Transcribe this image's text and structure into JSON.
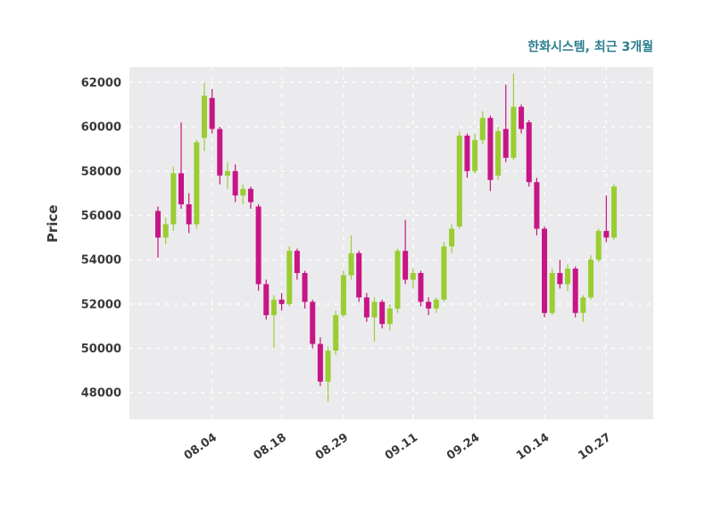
{
  "chart_data": {
    "type": "candlestick",
    "title": "한화시스템, 최근 3개월",
    "ylabel": "Price",
    "title_color": "#2C7F8E",
    "tick_color": "#3a3a3a",
    "up_color": "#9ACD32",
    "down_color": "#C71585",
    "plot_bg": "#EBEBEE",
    "grid_color": "#FFFFFF",
    "grid_style": "dashed",
    "legend": "none",
    "ylim": [
      46800,
      62700
    ],
    "yticks": [
      48000,
      50000,
      52000,
      54000,
      56000,
      58000,
      60000,
      62000
    ],
    "xticks": [
      {
        "i": 7,
        "label": "08.04"
      },
      {
        "i": 16,
        "label": "08.18"
      },
      {
        "i": 24,
        "label": "08.29"
      },
      {
        "i": 33,
        "label": "09.11"
      },
      {
        "i": 41,
        "label": "09.24"
      },
      {
        "i": 50,
        "label": "10.14"
      },
      {
        "i": 58,
        "label": "10.27"
      }
    ],
    "candle_format": [
      "open",
      "high",
      "low",
      "close"
    ],
    "candles": [
      [
        56200,
        56400,
        54100,
        55000
      ],
      [
        55000,
        55900,
        54700,
        55600
      ],
      [
        55600,
        58200,
        55300,
        57900
      ],
      [
        57900,
        60200,
        56300,
        56500
      ],
      [
        56500,
        57000,
        55200,
        55600
      ],
      [
        55600,
        59400,
        55400,
        59300
      ],
      [
        59500,
        62000,
        58900,
        61400
      ],
      [
        61300,
        61700,
        59700,
        59900
      ],
      [
        59900,
        60000,
        57400,
        57800
      ],
      [
        57800,
        58400,
        57200,
        58000
      ],
      [
        58000,
        58300,
        56600,
        56900
      ],
      [
        56900,
        57400,
        56500,
        57200
      ],
      [
        57200,
        57300,
        56300,
        56600
      ],
      [
        56400,
        56500,
        52600,
        52900
      ],
      [
        52900,
        53100,
        51300,
        51500
      ],
      [
        51500,
        52400,
        50000,
        52200
      ],
      [
        52200,
        52500,
        51700,
        52000
      ],
      [
        52000,
        54600,
        51900,
        54400
      ],
      [
        54400,
        54500,
        53100,
        53400
      ],
      [
        53400,
        53500,
        51800,
        52100
      ],
      [
        52100,
        52200,
        50000,
        50200
      ],
      [
        50200,
        50500,
        48300,
        48500
      ],
      [
        48500,
        50100,
        47600,
        49900
      ],
      [
        49900,
        51700,
        49700,
        51500
      ],
      [
        51500,
        53500,
        51400,
        53300
      ],
      [
        53300,
        55100,
        53100,
        54300
      ],
      [
        54300,
        54400,
        52100,
        52300
      ],
      [
        52300,
        52500,
        51200,
        51400
      ],
      [
        51400,
        52300,
        50300,
        52100
      ],
      [
        52100,
        52200,
        50900,
        51100
      ],
      [
        51100,
        52000,
        50800,
        51800
      ],
      [
        51800,
        54500,
        51600,
        54400
      ],
      [
        54400,
        55800,
        52900,
        53100
      ],
      [
        53100,
        53600,
        52700,
        53400
      ],
      [
        53400,
        53500,
        51900,
        52100
      ],
      [
        52100,
        52300,
        51500,
        51800
      ],
      [
        51800,
        52300,
        51600,
        52200
      ],
      [
        52200,
        54800,
        52100,
        54600
      ],
      [
        54600,
        55600,
        54300,
        55400
      ],
      [
        55500,
        59800,
        55400,
        59600
      ],
      [
        59600,
        59700,
        57700,
        58000
      ],
      [
        58000,
        59700,
        57900,
        59400
      ],
      [
        59400,
        60700,
        59200,
        60400
      ],
      [
        60400,
        60500,
        57100,
        57600
      ],
      [
        57800,
        60000,
        57600,
        59800
      ],
      [
        59900,
        61900,
        58400,
        58600
      ],
      [
        58600,
        62400,
        58500,
        60900
      ],
      [
        60900,
        61000,
        59700,
        59900
      ],
      [
        60200,
        60300,
        57300,
        57500
      ],
      [
        57500,
        57700,
        55100,
        55400
      ],
      [
        55400,
        55500,
        51400,
        51600
      ],
      [
        51600,
        53600,
        51500,
        53400
      ],
      [
        53400,
        54000,
        52700,
        52900
      ],
      [
        52900,
        53800,
        52600,
        53600
      ],
      [
        53600,
        53700,
        51400,
        51600
      ],
      [
        51600,
        52400,
        51200,
        52300
      ],
      [
        52300,
        54200,
        52200,
        54000
      ],
      [
        54000,
        55400,
        53900,
        55300
      ],
      [
        55300,
        56900,
        54800,
        55000
      ],
      [
        55000,
        57400,
        54900,
        57300
      ]
    ]
  }
}
